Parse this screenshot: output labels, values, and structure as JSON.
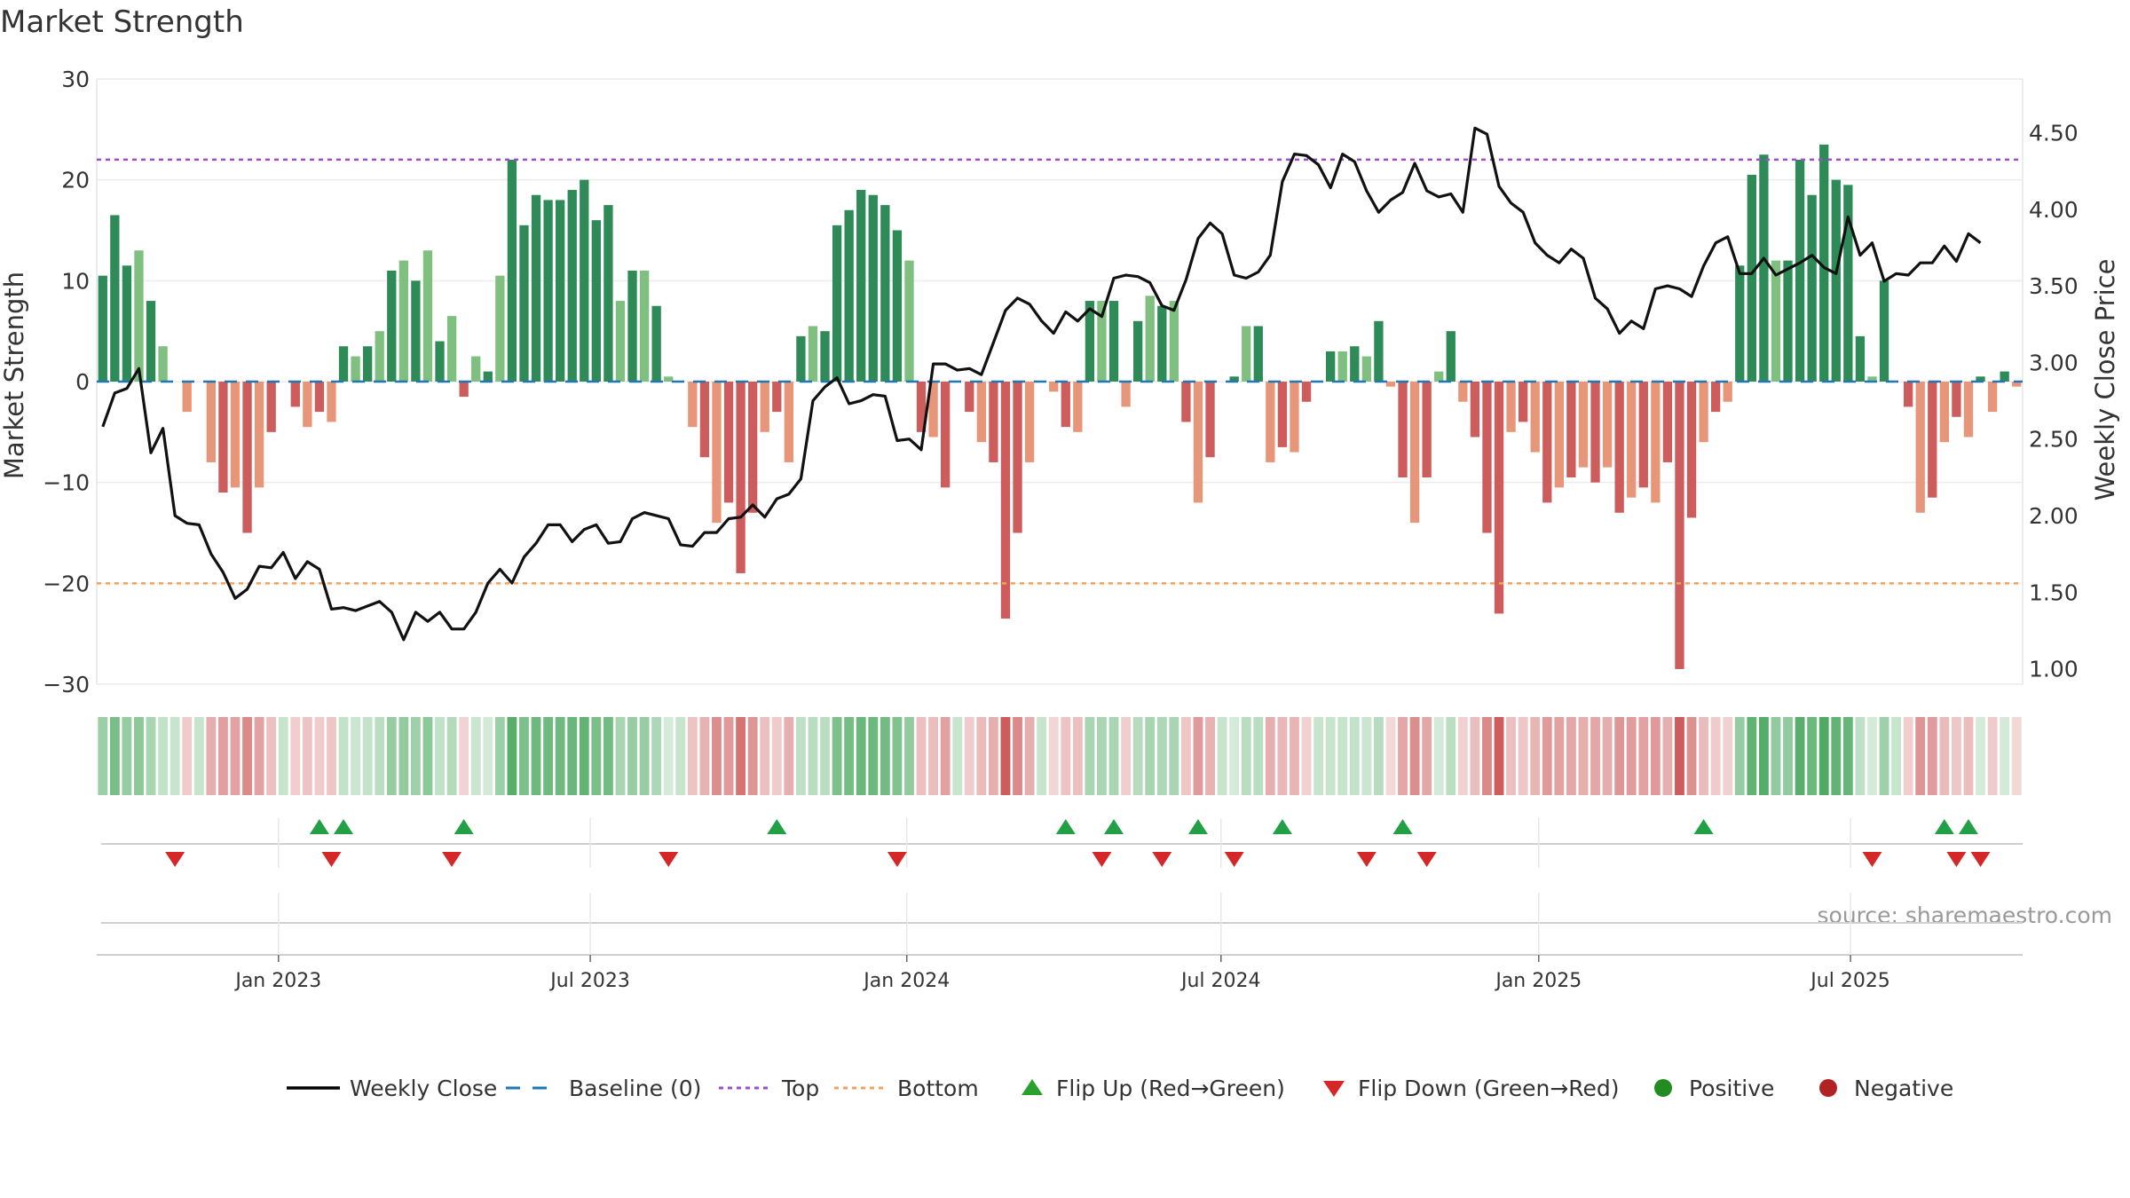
{
  "chart_data": {
    "type": "bar",
    "title": "Market Strength",
    "ylabel": "Market Strength",
    "y2label": "Weekly Close Price",
    "source": "source: sharemaestro.com",
    "ylim": [
      -30,
      30
    ],
    "y2lim": [
      0.9,
      4.85
    ],
    "yticks": [
      "30",
      "20",
      "10",
      "0",
      "−10",
      "−20",
      "−30"
    ],
    "yticks_values": [
      30,
      20,
      10,
      0,
      -10,
      -20,
      -30
    ],
    "y2ticks": [
      "4.50",
      "4.00",
      "3.50",
      "3.00",
      "2.50",
      "2.00",
      "1.50",
      "1.00"
    ],
    "y2ticks_values": [
      4.5,
      4.0,
      3.5,
      3.0,
      2.5,
      2.0,
      1.5,
      1.0
    ],
    "top_line": 22,
    "bottom_line": -20,
    "week_range": [
      0,
      157
    ],
    "xticks": [
      {
        "label": "Jan 2023",
        "week": 14.6
      },
      {
        "label": "Jul 2023",
        "week": 40.5
      },
      {
        "label": "Jan 2024",
        "week": 66.8
      },
      {
        "label": "Jul 2024",
        "week": 92.9
      },
      {
        "label": "Jan 2025",
        "week": 119.3
      },
      {
        "label": "Jul 2025",
        "week": 145.2
      }
    ],
    "strength": [
      10.5,
      16.5,
      11.5,
      13.0,
      8.0,
      3.5,
      0,
      -3,
      0,
      -8,
      -11,
      -10.5,
      -15,
      -10.5,
      -5,
      0,
      -2.5,
      -4.5,
      -3,
      -4,
      3.5,
      2.5,
      3.5,
      5,
      11,
      12,
      10,
      13,
      4,
      6.5,
      -1.5,
      2.5,
      1,
      10.5,
      22,
      15.5,
      18.5,
      18,
      18,
      19,
      20,
      16,
      17.5,
      8,
      11,
      11,
      7.5,
      0.5,
      0,
      -4.5,
      -7.5,
      -14,
      -12,
      -19,
      -13,
      -5,
      -3,
      -8,
      4.5,
      5.5,
      5,
      15.5,
      17,
      19,
      18.5,
      17.5,
      15,
      12,
      -5,
      -5.5,
      -10.5,
      0,
      -3,
      -6,
      -8,
      -23.5,
      -15,
      -8,
      0,
      -1,
      -4.5,
      -5,
      8,
      8,
      8,
      -2.5,
      6,
      8.5,
      7.5,
      8,
      -4,
      -12,
      -7.5,
      0,
      0.5,
      5.5,
      5.5,
      -8,
      -6.5,
      -7,
      -2,
      0,
      3,
      3,
      3.5,
      2.5,
      6,
      -0.5,
      -9.5,
      -14,
      -9.5,
      1,
      5,
      -2,
      -5.5,
      -15,
      -23,
      -5,
      -4,
      -7,
      -12,
      -10.5,
      -9.5,
      -8.5,
      -10,
      -8.5,
      -13,
      -11.5,
      -10.5,
      -12,
      -8,
      -28.5,
      -13.5,
      -6,
      -3,
      -2,
      11.5,
      20.5,
      22.5,
      12,
      12,
      22,
      18.5,
      23.5,
      20,
      19.5,
      4.5,
      0.5,
      10,
      0,
      -2.5,
      -13,
      -11.5,
      -6,
      -3.5,
      -5.5,
      0.5,
      -3,
      1,
      -0.5
    ],
    "price": [
      2.58,
      2.8,
      2.83,
      2.96,
      2.41,
      2.57,
      2.0,
      1.95,
      1.94,
      1.75,
      1.63,
      1.46,
      1.52,
      1.67,
      1.66,
      1.76,
      1.59,
      1.7,
      1.65,
      1.39,
      1.4,
      1.38,
      1.41,
      1.44,
      1.37,
      1.19,
      1.37,
      1.31,
      1.37,
      1.26,
      1.26,
      1.37,
      1.56,
      1.65,
      1.56,
      1.73,
      1.82,
      1.94,
      1.94,
      1.83,
      1.91,
      1.94,
      1.82,
      1.83,
      1.98,
      2.02,
      2.0,
      1.98,
      1.81,
      1.8,
      1.89,
      1.89,
      1.98,
      1.99,
      2.07,
      1.99,
      2.11,
      2.14,
      2.24,
      2.75,
      2.84,
      2.9,
      2.73,
      2.75,
      2.79,
      2.78,
      2.49,
      2.5,
      2.43,
      2.99,
      2.99,
      2.95,
      2.96,
      2.92,
      3.13,
      3.34,
      3.42,
      3.38,
      3.27,
      3.19,
      3.33,
      3.27,
      3.35,
      3.3,
      3.55,
      3.57,
      3.56,
      3.52,
      3.37,
      3.34,
      3.54,
      3.81,
      3.91,
      3.84,
      3.57,
      3.55,
      3.59,
      3.7,
      4.18,
      4.36,
      4.35,
      4.29,
      4.14,
      4.36,
      4.31,
      4.12,
      3.98,
      4.06,
      4.11,
      4.3,
      4.12,
      4.08,
      4.1,
      3.98,
      4.53,
      4.49,
      4.15,
      4.04,
      3.98,
      3.78,
      3.7,
      3.65,
      3.74,
      3.68,
      3.42,
      3.35,
      3.19,
      3.27,
      3.22,
      3.48,
      3.5,
      3.48,
      3.43,
      3.63,
      3.78,
      3.82,
      3.58,
      3.58,
      3.68,
      3.57,
      3.61,
      3.65,
      3.7,
      3.62,
      3.58,
      3.95,
      3.7,
      3.78,
      3.53,
      3.58,
      3.57,
      3.65,
      3.65,
      3.76,
      3.66,
      3.84,
      3.78
    ],
    "flip_up_weeks": [
      18,
      20,
      30,
      56,
      80,
      84,
      91,
      98,
      108,
      133,
      153,
      155
    ],
    "flip_down_weeks": [
      6,
      19,
      29,
      47,
      66,
      83,
      88,
      94,
      105,
      110,
      147,
      154,
      156
    ],
    "legend": [
      {
        "label": "Weekly Close",
        "marker": "line",
        "color": "#000000"
      },
      {
        "label": "Baseline (0)",
        "marker": "dash",
        "color": "#1f77b4"
      },
      {
        "label": "Top",
        "marker": "dot",
        "color": "#9b4dca"
      },
      {
        "label": "Bottom",
        "marker": "dot",
        "color": "#f0a35c"
      },
      {
        "label": "Flip Up (Red→Green)",
        "marker": "tri-up",
        "color": "#2ca02c"
      },
      {
        "label": "Flip Down (Green→Red)",
        "marker": "tri-down",
        "color": "#d62728"
      },
      {
        "label": "Positive",
        "marker": "circle",
        "color": "#228b22"
      },
      {
        "label": "Negative",
        "marker": "circle",
        "color": "#b22222"
      }
    ],
    "colors": {
      "pos_strong": "#2e8b57",
      "pos_weak": "#7fbf7f",
      "neg_strong": "#cd5c5c",
      "neg_weak": "#e8967a",
      "price": "#111111",
      "top": "#9b4dca",
      "bottom": "#f0a35c",
      "baseline": "#1f77b4"
    }
  }
}
